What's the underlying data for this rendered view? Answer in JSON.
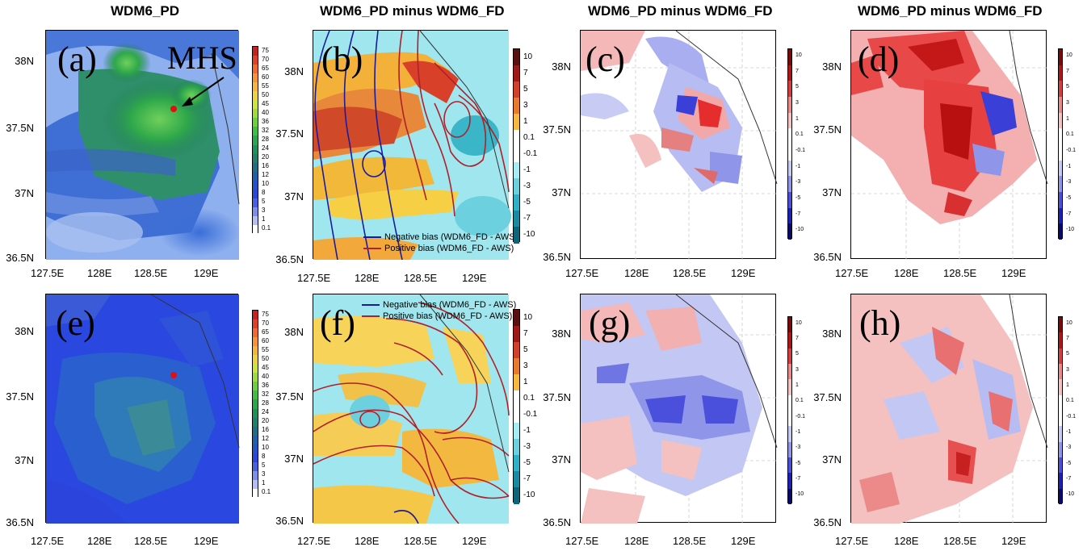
{
  "titles": {
    "a": "WDM6_PD",
    "b": "WDM6_PD minus WDM6_FD",
    "c": "WDM6_PD minus WDM6_FD",
    "d": "WDM6_PD minus WDM6_FD"
  },
  "panel_letters": {
    "a": "(a)",
    "b": "(b)",
    "c": "(c)",
    "d": "(d)",
    "e": "(e)",
    "f": "(f)",
    "g": "(g)",
    "h": "(h)"
  },
  "marker_label": "MHS",
  "axis": {
    "x_ticks": [
      "127.5E",
      "128E",
      "128.5E",
      "129E"
    ],
    "y_ticks": [
      "38N",
      "37.5N",
      "37N",
      "36.5N"
    ]
  },
  "colorbar_abs": {
    "levels": [
      "75",
      "70",
      "65",
      "60",
      "55",
      "50",
      "45",
      "40",
      "36",
      "32",
      "28",
      "24",
      "20",
      "16",
      "12",
      "10",
      "8",
      "5",
      "3",
      "1",
      "0.1"
    ]
  },
  "colorbar_diff": {
    "levels": [
      "10",
      "7",
      "5",
      "3",
      "1",
      "0.1",
      "-0.1",
      "-1",
      "-3",
      "-5",
      "-7",
      "-10"
    ]
  },
  "legend": {
    "negative": "Negative bias (WDM6_FD - AWS)",
    "positive": "Positive bias (WDM6_FD - AWS)",
    "negative_color": "#1b1b9e",
    "positive_color": "#b0202a"
  },
  "colors": {
    "marker": "#e01010"
  }
}
